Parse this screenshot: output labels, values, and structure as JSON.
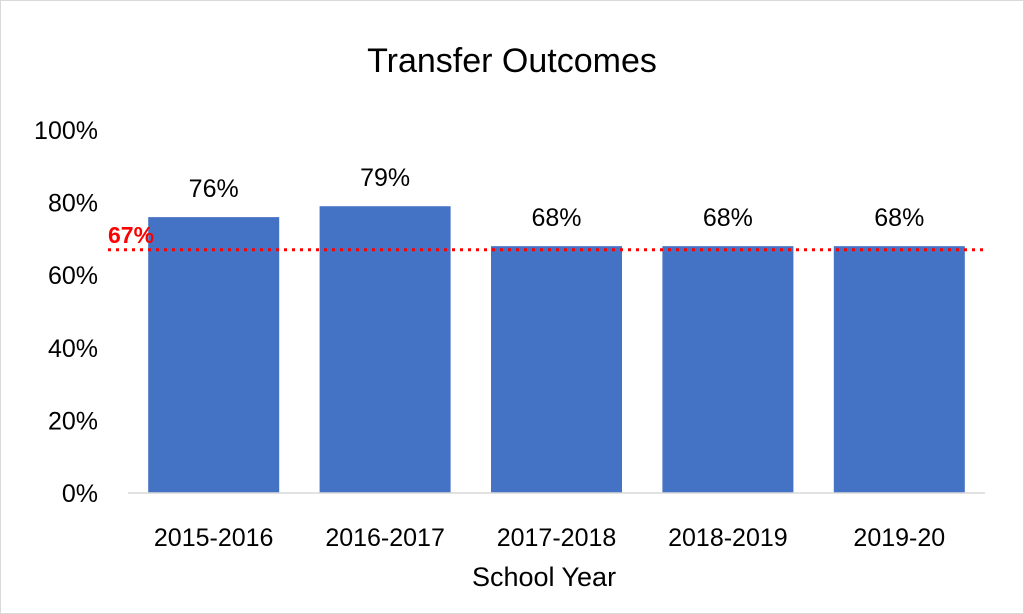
{
  "chart_data": {
    "type": "bar",
    "title": "Transfer Outcomes",
    "xlabel": "School Year",
    "ylabel": "",
    "categories": [
      "2015-2016",
      "2016-2017",
      "2017-2018",
      "2018-2019",
      "2019-20"
    ],
    "values": [
      76,
      79,
      68,
      68,
      68
    ],
    "data_labels": [
      "76%",
      "79%",
      "68%",
      "68%",
      "68%"
    ],
    "ylim": [
      0,
      100
    ],
    "yticks": [
      0,
      20,
      40,
      60,
      80,
      100
    ],
    "ytick_labels": [
      "0%",
      "20%",
      "40%",
      "60%",
      "80%",
      "100%"
    ],
    "grid": false,
    "legend": "none",
    "bar_color": "#4472c4",
    "reference_line": {
      "value": 67,
      "label": "67%",
      "color": "#ff0000",
      "style": "dotted"
    }
  }
}
